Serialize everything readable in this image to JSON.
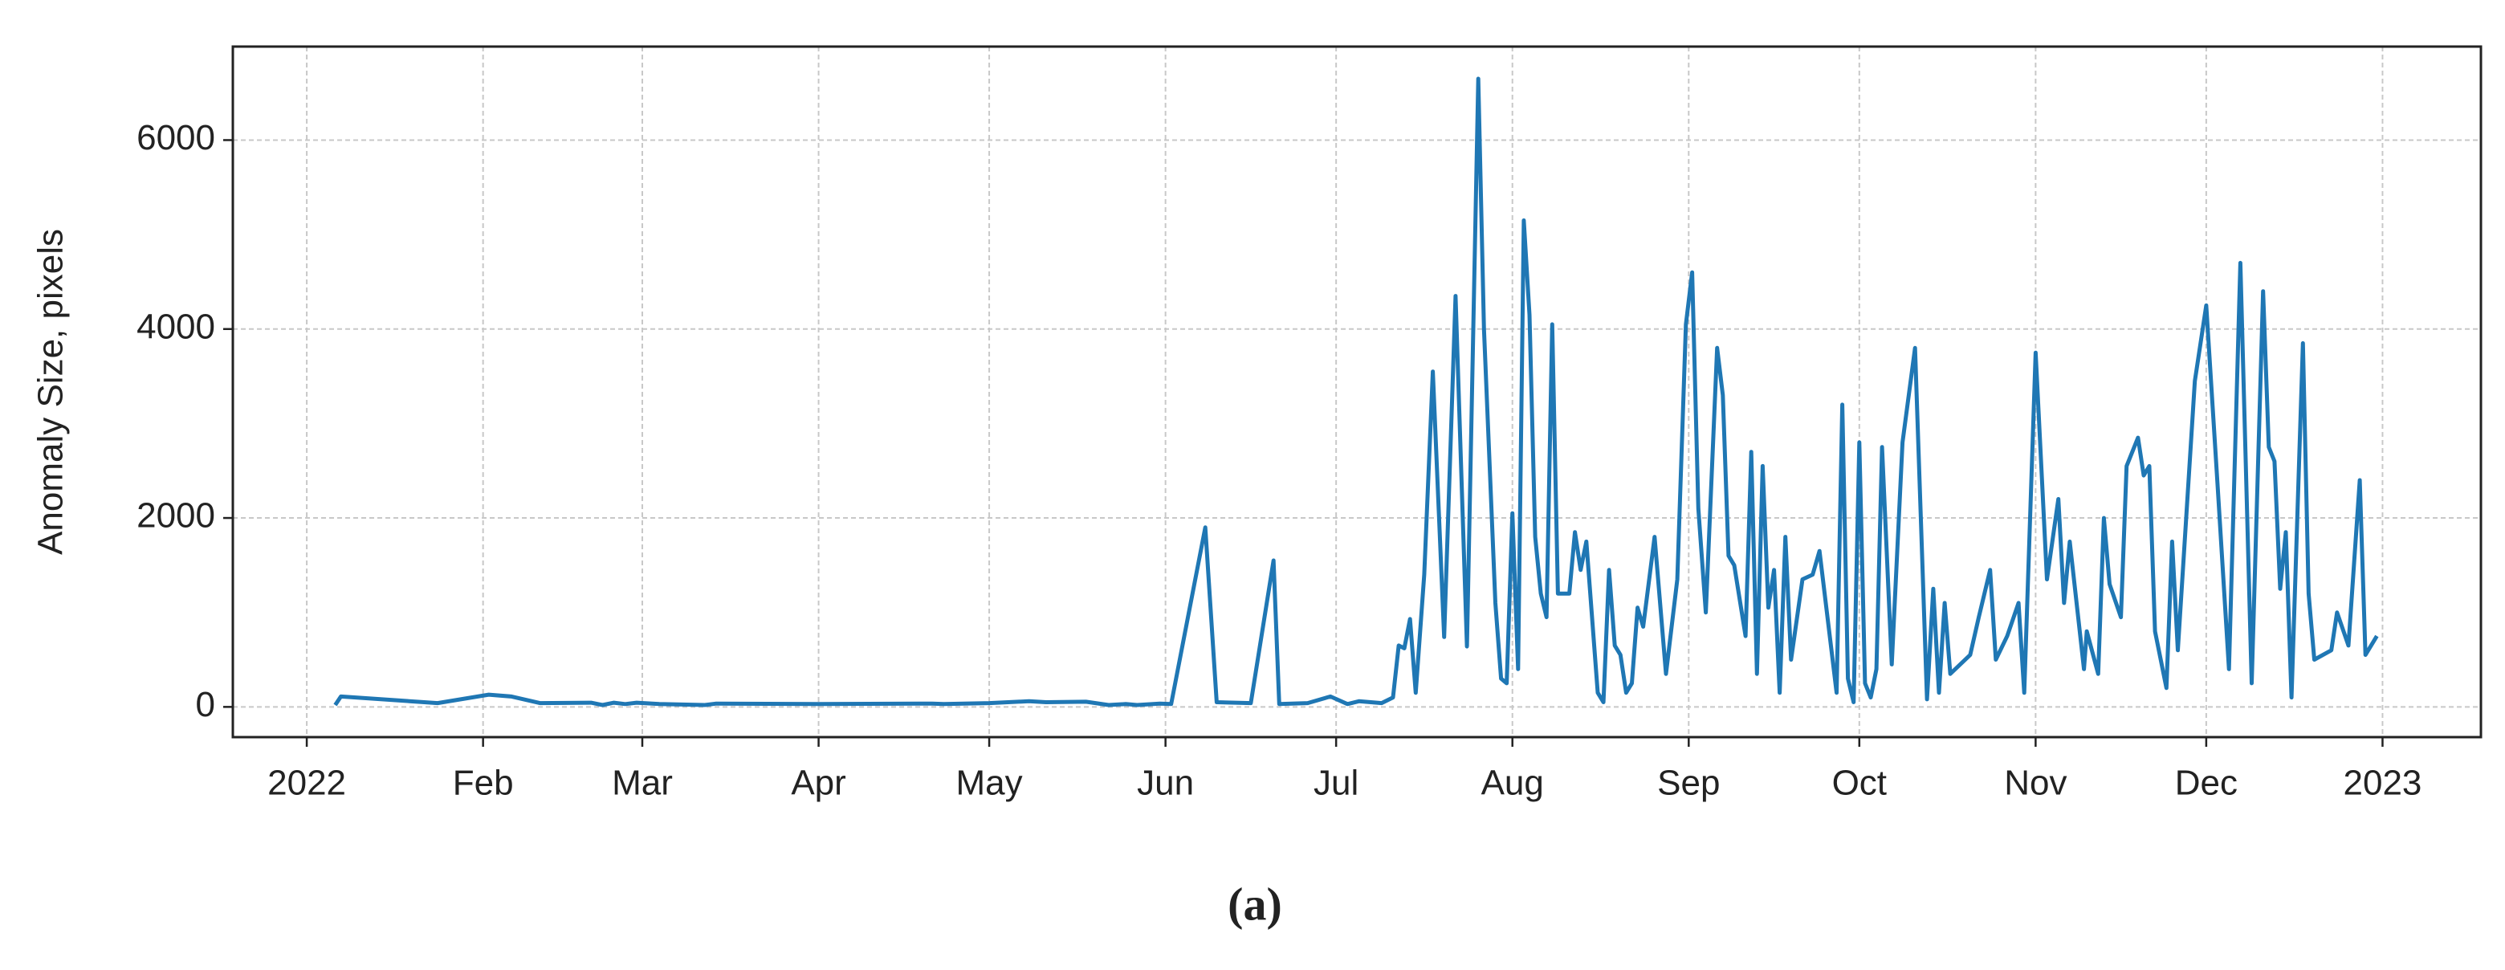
{
  "chart_data": {
    "type": "line",
    "ylabel": "Anomaly Size, pixels",
    "caption": "(a)",
    "x": [
      5,
      6,
      23,
      32,
      36,
      41,
      50,
      52,
      54,
      56,
      58,
      62,
      70,
      72,
      90,
      110,
      112,
      120,
      127,
      130,
      137,
      141,
      144,
      146,
      150,
      152,
      158,
      160,
      166,
      170,
      171,
      176,
      180,
      183,
      185,
      189,
      191,
      192,
      193,
      194,
      195,
      196.5,
      198,
      200,
      202,
      204,
      206,
      207,
      209,
      210,
      211,
      212,
      213,
      214,
      215,
      216,
      217,
      218,
      219,
      220,
      222,
      223,
      224,
      225,
      227,
      228,
      229,
      230,
      231,
      232,
      233,
      234,
      235,
      237,
      239,
      241,
      242.5,
      243.6,
      244.7,
      246,
      248,
      249,
      250,
      251,
      253,
      254,
      255,
      256,
      257,
      258,
      259,
      260,
      261,
      263,
      264.8,
      266,
      269,
      270,
      271,
      272,
      273,
      274,
      275,
      276,
      277,
      278.7,
      280.6,
      282.8,
      284.9,
      286,
      287,
      288,
      289,
      292.5,
      294,
      296,
      297,
      299,
      301,
      302,
      304,
      306,
      308,
      309,
      310,
      312.5,
      313,
      315,
      316,
      317,
      319,
      320,
      322,
      323,
      324,
      325,
      327,
      328,
      329,
      332,
      334,
      336,
      338,
      340,
      342,
      344,
      345,
      346,
      347,
      348,
      349,
      351,
      352,
      353,
      356,
      357,
      359,
      361,
      362,
      364
    ],
    "series": [
      {
        "name": "Anomaly Size",
        "color": "#1f77b4",
        "values": [
          20,
          110,
          40,
          130,
          110,
          40,
          45,
          20,
          45,
          30,
          45,
          30,
          20,
          35,
          30,
          35,
          30,
          40,
          60,
          50,
          55,
          20,
          30,
          20,
          35,
          30,
          1900,
          50,
          40,
          1550,
          30,
          40,
          110,
          30,
          60,
          40,
          100,
          650,
          620,
          930,
          150,
          1400,
          3550,
          740,
          4350,
          640,
          6650,
          4000,
          1100,
          300,
          250,
          2050,
          400,
          5150,
          4150,
          1800,
          1200,
          950,
          4050,
          1200,
          1200,
          1850,
          1450,
          1750,
          150,
          50,
          1450,
          650,
          550,
          150,
          250,
          1050,
          850,
          1800,
          350,
          1350,
          4050,
          4600,
          2100,
          1000,
          3800,
          3300,
          1600,
          1500,
          750,
          2700,
          350,
          2550,
          1050,
          1450,
          150,
          1800,
          500,
          1350,
          1400,
          1650,
          150,
          3200,
          300,
          50,
          2800,
          250,
          100,
          400,
          2750,
          450,
          2800,
          3800,
          80,
          1250,
          150,
          1100,
          350,
          550,
          950,
          1450,
          500,
          750,
          1100,
          150,
          3750,
          1350,
          2200,
          1100,
          1750,
          400,
          800,
          350,
          2000,
          1300,
          950,
          2550,
          2850,
          2450,
          2550,
          800,
          200,
          1750,
          600,
          3450,
          4250,
          2350,
          400,
          4700,
          250,
          4400,
          2750,
          2600,
          1250,
          1850,
          100,
          3850,
          1200,
          500,
          600,
          1000,
          650,
          2400,
          550,
          750
        ]
      }
    ],
    "xlim": [
      -13,
      382.3
    ],
    "xticks": [
      {
        "value": 0,
        "label": "2022"
      },
      {
        "value": 31,
        "label": "Feb"
      },
      {
        "value": 59,
        "label": "Mar"
      },
      {
        "value": 90,
        "label": "Apr"
      },
      {
        "value": 120,
        "label": "May"
      },
      {
        "value": 151,
        "label": "Jun"
      },
      {
        "value": 181,
        "label": "Jul"
      },
      {
        "value": 212,
        "label": "Aug"
      },
      {
        "value": 243,
        "label": "Sep"
      },
      {
        "value": 273,
        "label": "Oct"
      },
      {
        "value": 304,
        "label": "Nov"
      },
      {
        "value": 334,
        "label": "Dec"
      },
      {
        "value": 365,
        "label": "2023"
      }
    ],
    "ylim": [
      -320,
      6990
    ],
    "yticks": [
      0,
      2000,
      4000,
      6000
    ],
    "grid": true
  }
}
